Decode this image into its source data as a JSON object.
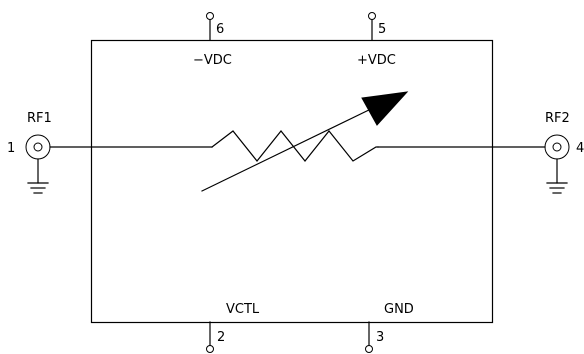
{
  "diagram": {
    "labels": {
      "pin6_num": "6",
      "pin5_num": "5",
      "pin2_num": "2",
      "pin3_num": "3",
      "pin1_num": "1",
      "pin4_num": "4",
      "neg_vdc": "−VDC",
      "pos_vdc": "+VDC",
      "vctl": "VCTL",
      "gnd": "GND",
      "rf1": "RF1",
      "rf2": "RF2"
    }
  }
}
